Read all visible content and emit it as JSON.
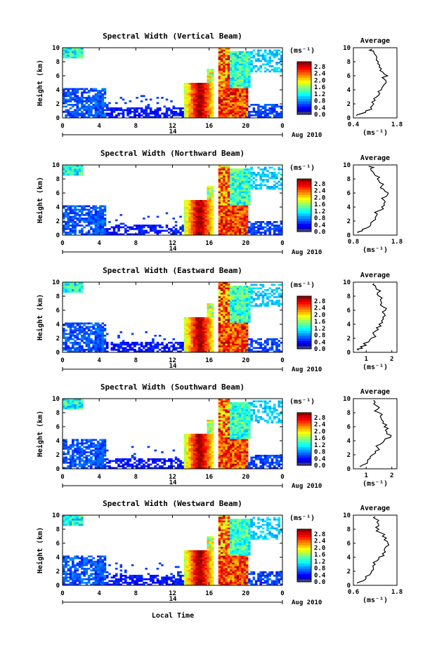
{
  "figure": {
    "date_label": "Aug 2010",
    "xlabel_bottom": "Local Time",
    "day_label": "14",
    "colorbar_unit": "(ms⁻¹)",
    "colorbar_ticks": [
      "0.0",
      "0.4",
      "0.8",
      "1.2",
      "1.6",
      "2.0",
      "2.4",
      "2.8"
    ],
    "avg_title": "Average",
    "avg_unit": "(ms⁻¹)"
  },
  "chart_data": [
    {
      "type": "heatmap",
      "title": "Spectral Width (Vertical Beam)",
      "ylabel": "Height (km)",
      "x_ticks": [
        "0",
        "4",
        "8",
        "12",
        "16",
        "20",
        "0"
      ],
      "y_ticks": [
        "0",
        "2",
        "4",
        "6",
        "8",
        "10"
      ],
      "xlim": [
        0,
        24
      ],
      "ylim": [
        0,
        10
      ],
      "clim": [
        0,
        3.0
      ],
      "profile": {
        "title": "Average",
        "xlim": [
          0.4,
          1.8
        ],
        "x_ticks": [
          "0.4",
          "1.8"
        ],
        "heights": [
          0.3,
          0.6,
          1.0,
          1.5,
          2.0,
          2.5,
          3.0,
          3.5,
          4.0,
          4.5,
          5.0,
          5.5,
          6.0,
          6.5,
          7.0,
          7.5,
          8.0,
          8.5,
          9.0,
          9.5,
          9.8
        ],
        "values": [
          0.5,
          0.65,
          0.8,
          0.95,
          1.05,
          1.1,
          1.15,
          1.25,
          1.3,
          1.35,
          1.45,
          1.4,
          1.5,
          1.35,
          1.3,
          1.25,
          1.2,
          1.15,
          1.1,
          1.05,
          1.0
        ]
      }
    },
    {
      "type": "heatmap",
      "title": "Spectral Width (Northward Beam)",
      "ylabel": "Height (km)",
      "x_ticks": [
        "0",
        "4",
        "8",
        "12",
        "16",
        "20",
        "0"
      ],
      "y_ticks": [
        "0",
        "2",
        "4",
        "6",
        "8",
        "10"
      ],
      "xlim": [
        0,
        24
      ],
      "ylim": [
        0,
        10
      ],
      "clim": [
        0,
        3.0
      ],
      "profile": {
        "title": "Average",
        "xlim": [
          0.8,
          1.8
        ],
        "x_ticks": [
          "0.8",
          "1.8"
        ],
        "heights": [
          0.3,
          0.6,
          1.0,
          1.5,
          2.0,
          2.5,
          3.0,
          3.5,
          4.0,
          4.5,
          5.0,
          5.5,
          6.0,
          6.5,
          7.0,
          7.5,
          8.0,
          8.5,
          9.0,
          9.5,
          9.8
        ],
        "values": [
          0.9,
          1.0,
          1.1,
          1.2,
          1.25,
          1.3,
          1.35,
          1.4,
          1.45,
          1.5,
          1.5,
          1.55,
          1.6,
          1.5,
          1.45,
          1.4,
          1.35,
          1.3,
          1.25,
          1.2,
          1.15
        ]
      }
    },
    {
      "type": "heatmap",
      "title": "Spectral Width (Eastward Beam)",
      "ylabel": "Height (km)",
      "x_ticks": [
        "0",
        "4",
        "8",
        "12",
        "16",
        "20",
        "0"
      ],
      "y_ticks": [
        "0",
        "2",
        "4",
        "6",
        "8",
        "10"
      ],
      "xlim": [
        0,
        24
      ],
      "ylim": [
        0,
        10
      ],
      "clim": [
        0,
        3.0
      ],
      "profile": {
        "title": "Average",
        "xlim": [
          0.5,
          2.2
        ],
        "x_ticks": [
          "1",
          "2"
        ],
        "heights": [
          0.3,
          0.6,
          1.0,
          1.5,
          2.0,
          2.5,
          3.0,
          3.5,
          4.0,
          4.5,
          5.0,
          5.5,
          6.0,
          6.5,
          7.0,
          7.5,
          8.0,
          8.5,
          9.0,
          9.5,
          9.8
        ],
        "values": [
          0.7,
          0.85,
          1.0,
          1.1,
          1.2,
          1.3,
          1.35,
          1.4,
          1.5,
          1.6,
          1.65,
          1.7,
          1.75,
          1.65,
          1.6,
          1.55,
          1.5,
          1.45,
          1.4,
          1.35,
          1.3
        ]
      }
    },
    {
      "type": "heatmap",
      "title": "Spectral Width (Southward Beam)",
      "ylabel": "Height (km)",
      "x_ticks": [
        "0",
        "4",
        "8",
        "12",
        "16",
        "20",
        "0"
      ],
      "y_ticks": [
        "0",
        "2",
        "4",
        "6",
        "8",
        "10"
      ],
      "xlim": [
        0,
        24
      ],
      "ylim": [
        0,
        10
      ],
      "clim": [
        0,
        3.0
      ],
      "profile": {
        "title": "Average",
        "xlim": [
          0.5,
          2.2
        ],
        "x_ticks": [
          "1",
          "2"
        ],
        "heights": [
          0.3,
          0.6,
          1.0,
          1.5,
          2.0,
          2.5,
          3.0,
          3.5,
          4.0,
          4.5,
          5.0,
          5.5,
          6.0,
          6.5,
          7.0,
          7.5,
          8.0,
          8.5,
          9.0,
          9.5,
          9.8
        ],
        "values": [
          0.75,
          0.9,
          1.05,
          1.15,
          1.25,
          1.35,
          1.45,
          1.55,
          1.7,
          1.95,
          1.8,
          1.75,
          1.7,
          1.65,
          1.6,
          1.55,
          1.5,
          1.45,
          1.4,
          1.35,
          1.3
        ]
      }
    },
    {
      "type": "heatmap",
      "title": "Spectral Width (Westward Beam)",
      "ylabel": "Height (km)",
      "x_ticks": [
        "0",
        "4",
        "8",
        "12",
        "16",
        "20",
        "0"
      ],
      "y_ticks": [
        "0",
        "2",
        "4",
        "6",
        "8",
        "10"
      ],
      "xlim": [
        0,
        24
      ],
      "ylim": [
        0,
        10
      ],
      "clim": [
        0,
        3.0
      ],
      "profile": {
        "title": "Average",
        "xlim": [
          0.6,
          1.8
        ],
        "x_ticks": [
          "0.6",
          "1.8"
        ],
        "heights": [
          0.3,
          0.6,
          1.0,
          1.5,
          2.0,
          2.5,
          3.0,
          3.5,
          4.0,
          4.5,
          5.0,
          5.5,
          6.0,
          6.5,
          7.0,
          7.5,
          8.0,
          8.5,
          9.0,
          9.5,
          9.8
        ],
        "values": [
          0.7,
          0.85,
          0.95,
          1.05,
          1.1,
          1.15,
          1.2,
          1.25,
          1.3,
          1.4,
          1.45,
          1.5,
          1.55,
          1.45,
          1.4,
          1.35,
          1.3,
          1.3,
          1.25,
          1.2,
          1.2
        ]
      }
    }
  ]
}
